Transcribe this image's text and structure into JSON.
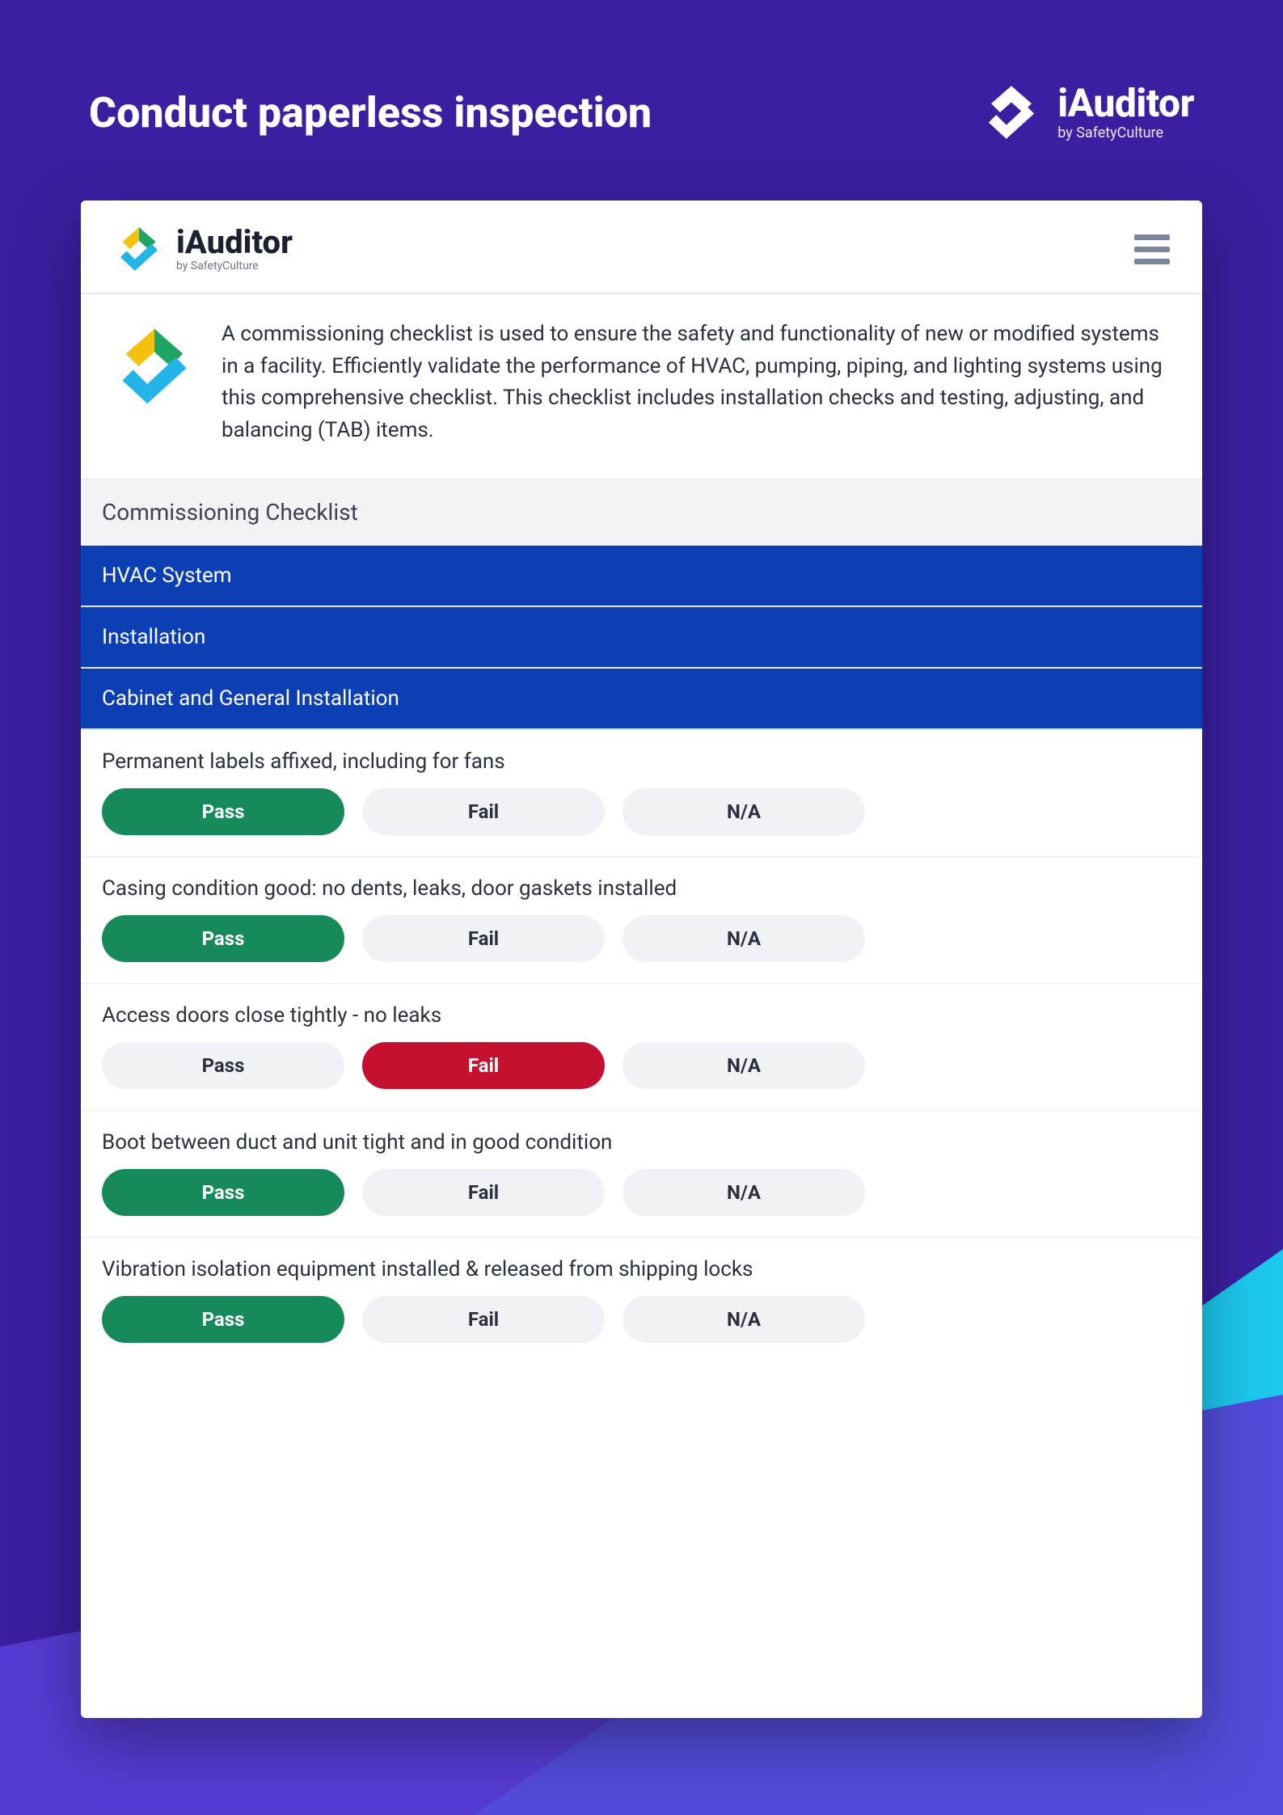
{
  "colors": {
    "page_bg": "#3a1fa0",
    "accent_triangle": "#1cc8ee",
    "accent_overlay": "#5a3ed8",
    "app_bg": "#ffffff",
    "section_bg": "#f3f3f6",
    "blue_bar_bg": "#0b3fb3",
    "blue_bar_text": "#ffffff",
    "option_neutral_bg": "#f1f2f5",
    "option_neutral_text": "#2a3040",
    "option_pass_bg": "#168a5a",
    "option_fail_bg": "#c41130",
    "text_primary": "#2a3040",
    "hamburger": "#7c859a"
  },
  "header": {
    "title": "Conduct paperless inspection",
    "brand_name": "iAuditor",
    "brand_sub": "by SafetyCulture"
  },
  "app": {
    "brand_name": "iAuditor",
    "brand_sub": "by SafetyCulture",
    "intro_text": "A commissioning checklist is used to ensure the safety and functionality of new or modified systems in a facility. Efficiently validate the performance of HVAC, pumping, piping, and lighting systems using this comprehensive checklist. This checklist includes installation checks and testing, adjusting, and balancing (TAB) items."
  },
  "checklist": {
    "section_title": "Commissioning Checklist",
    "groups": [
      "HVAC System",
      "Installation",
      "Cabinet and General Installation"
    ],
    "option_labels": {
      "pass": "Pass",
      "fail": "Fail",
      "na": "N/A"
    },
    "items": [
      {
        "question": "Permanent labels affixed, including for fans",
        "selected": "pass"
      },
      {
        "question": "Casing condition good: no dents, leaks, door gaskets installed",
        "selected": "pass"
      },
      {
        "question": "Access doors close tightly - no leaks",
        "selected": "fail"
      },
      {
        "question": "Boot between duct and unit tight and in good condition",
        "selected": "pass"
      },
      {
        "question": "Vibration isolation equipment installed & released from shipping locks",
        "selected": "pass"
      }
    ]
  }
}
